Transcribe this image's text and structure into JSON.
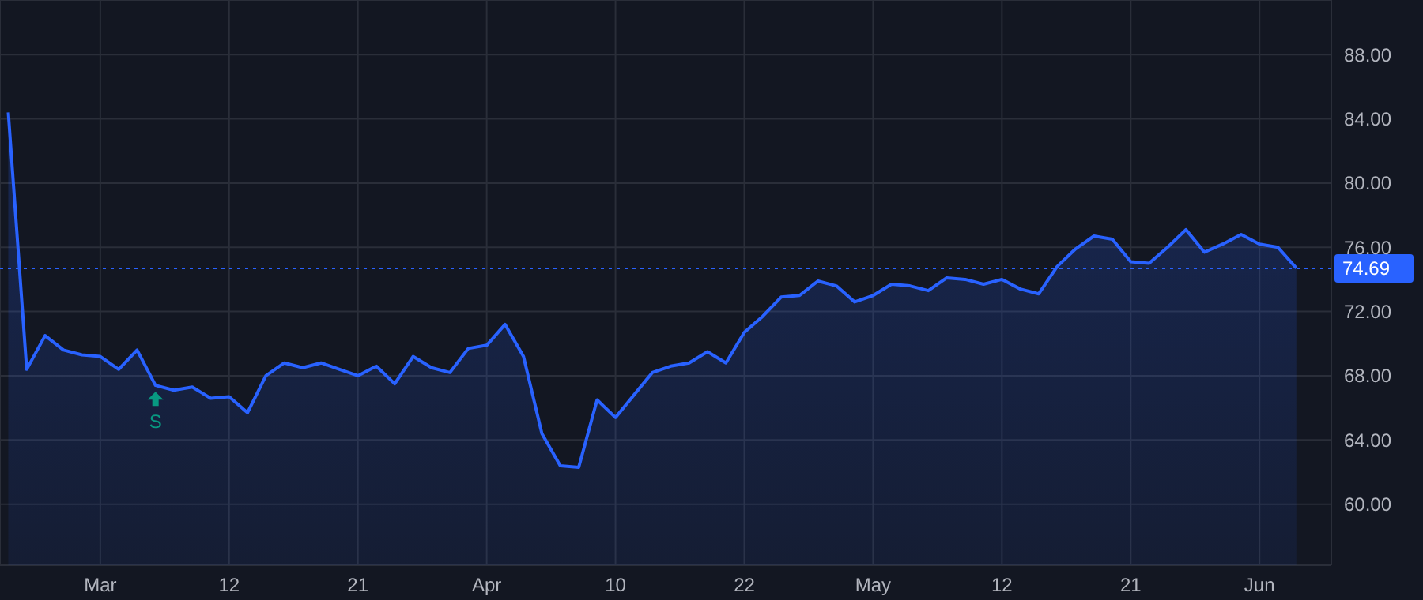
{
  "chart_data": {
    "type": "area",
    "categories": [
      null,
      null,
      null,
      null,
      null,
      "Mar",
      null,
      null,
      null,
      null,
      null,
      null,
      "12",
      null,
      null,
      null,
      null,
      null,
      null,
      "21",
      null,
      null,
      null,
      null,
      null,
      null,
      "Apr",
      null,
      null,
      null,
      null,
      null,
      null,
      "10",
      null,
      null,
      null,
      null,
      null,
      null,
      "22",
      null,
      null,
      null,
      null,
      null,
      null,
      "May",
      null,
      null,
      null,
      null,
      null,
      null,
      "12",
      null,
      null,
      null,
      null,
      null,
      null,
      "21",
      null,
      null,
      null,
      null,
      null,
      null,
      "Jun",
      null,
      null
    ],
    "series": [
      {
        "color": "#2962ff",
        "values": [
          84.4,
          68.4,
          70.5,
          69.6,
          69.3,
          69.2,
          68.4,
          69.6,
          67.4,
          67.1,
          67.3,
          66.6,
          66.7,
          65.7,
          68.0,
          68.8,
          68.5,
          68.8,
          68.4,
          68.0,
          68.6,
          67.5,
          69.2,
          68.5,
          68.2,
          69.7,
          69.9,
          71.2,
          69.2,
          64.4,
          62.4,
          62.3,
          66.5,
          65.4,
          66.8,
          68.2,
          68.6,
          68.8,
          69.5,
          68.8,
          70.7,
          71.7,
          72.9,
          73.0,
          73.9,
          73.6,
          72.6,
          73.0,
          73.7,
          73.6,
          73.3,
          74.1,
          74.0,
          73.7,
          74.0,
          73.4,
          73.1,
          74.8,
          75.9,
          76.7,
          76.5,
          75.1,
          75.0,
          76.0,
          77.1,
          75.7,
          76.2,
          76.8,
          76.2,
          76.0,
          74.7
        ]
      }
    ],
    "ylim": [
      56.2,
      91.4
    ],
    "yticks": [
      {
        "value": 60,
        "label": "60.00"
      },
      {
        "value": 64,
        "label": "64.00"
      },
      {
        "value": 68,
        "label": "68.00"
      },
      {
        "value": 72,
        "label": "72.00"
      },
      {
        "value": 76,
        "label": "76.00"
      },
      {
        "value": 80,
        "label": "80.00"
      },
      {
        "value": 84,
        "label": "84.00"
      },
      {
        "value": 88,
        "label": "88.00"
      }
    ],
    "grid": true,
    "ref_lines": [
      {
        "axis": "y",
        "value": 74.69,
        "label": "74.69",
        "color": "#2962ff",
        "line_style": "dotted"
      }
    ],
    "annotations": [
      {
        "text": "S",
        "y": 67.4
      }
    ]
  }
}
